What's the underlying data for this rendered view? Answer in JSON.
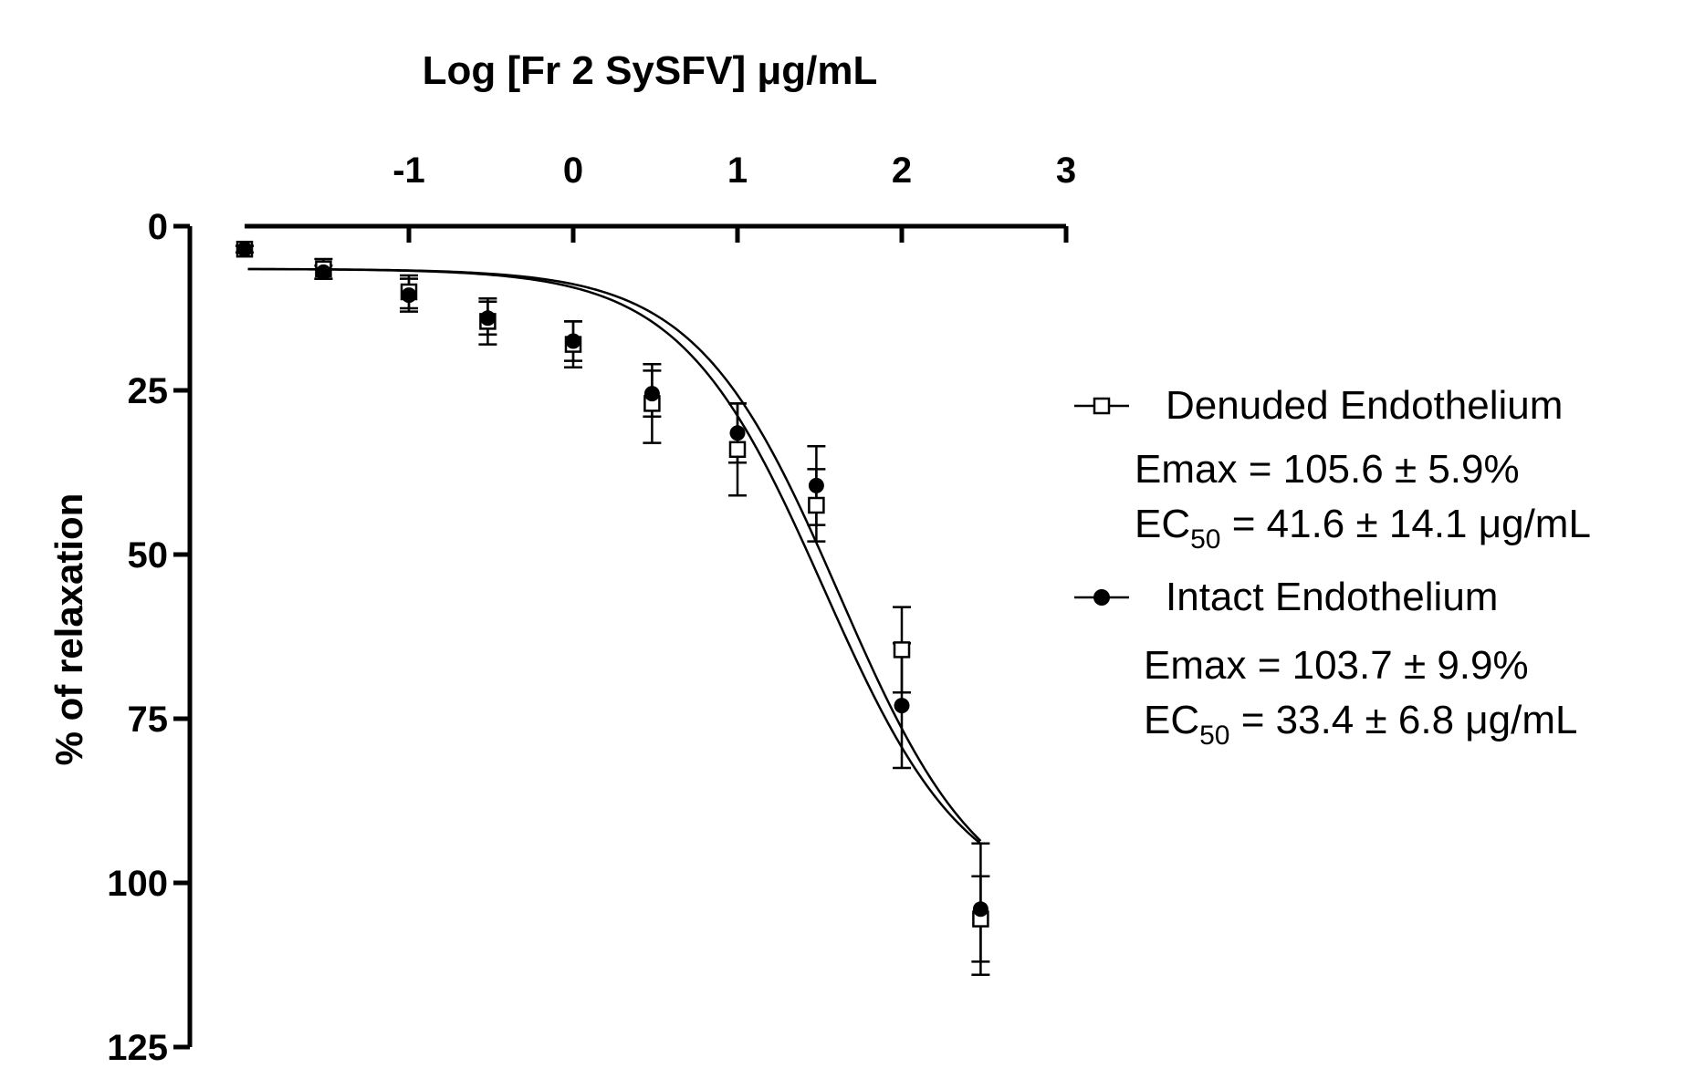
{
  "chart_data": {
    "type": "scatter",
    "xlabel": "Log [Fr 2 SySFV] μg/mL",
    "ylabel": "% of relaxation",
    "xlim": [
      -2.0,
      3.0
    ],
    "ylim": [
      0,
      125
    ],
    "y_inverted": true,
    "x_axis_position": "top",
    "x_ticks": [
      "-1",
      "0",
      "1",
      "2",
      "3"
    ],
    "y_ticks": [
      "0",
      "25",
      "50",
      "75",
      "100",
      "125"
    ],
    "grid": false,
    "legend_position": "right",
    "series": [
      {
        "name": "Denuded Endothelium",
        "marker": "open-square",
        "x": [
          -2.0,
          -1.52,
          -1.0,
          -0.52,
          0.0,
          0.48,
          1.0,
          1.48,
          2.0,
          2.48
        ],
        "y": [
          3.5,
          6.5,
          10.0,
          14.5,
          18.0,
          27.0,
          34.0,
          42.5,
          64.5,
          105.5
        ],
        "err": [
          0.5,
          1.5,
          2.5,
          3.5,
          3.5,
          6.0,
          7.0,
          5.5,
          6.5,
          6.5
        ],
        "annotation": {
          "emax": "Emax = 105.6 ± 5.9%",
          "ec50_prefix": "EC",
          "ec50_sub": "50",
          "ec50_suffix": " = 41.6 ± 14.1 μg/mL"
        }
      },
      {
        "name": "Intact Endothelium",
        "marker": "filled-circle",
        "x": [
          -2.0,
          -1.52,
          -1.0,
          -0.52,
          0.0,
          0.48,
          1.0,
          1.48,
          2.0,
          2.48
        ],
        "y": [
          3.5,
          7.0,
          10.5,
          14.0,
          17.5,
          25.5,
          31.5,
          39.5,
          73.0,
          104.0
        ],
        "err": [
          0.5,
          1.0,
          2.5,
          2.5,
          3.0,
          3.5,
          4.5,
          6.0,
          9.5,
          10.0
        ],
        "annotation": {
          "emax": "Emax = 103.7 ± 9.9%",
          "ec50_prefix": "EC",
          "ec50_sub": "50",
          "ec50_suffix": " = 33.4 ± 6.8 μg/mL"
        }
      }
    ],
    "fit_curves": [
      {
        "series": "Denuded Endothelium",
        "top": 105.6,
        "bottom": 6.5,
        "log_ec50": 1.619,
        "hill": 1.0
      },
      {
        "series": "Intact Endothelium",
        "top": 103.7,
        "bottom": 6.5,
        "log_ec50": 1.524,
        "hill": 1.0
      }
    ]
  }
}
